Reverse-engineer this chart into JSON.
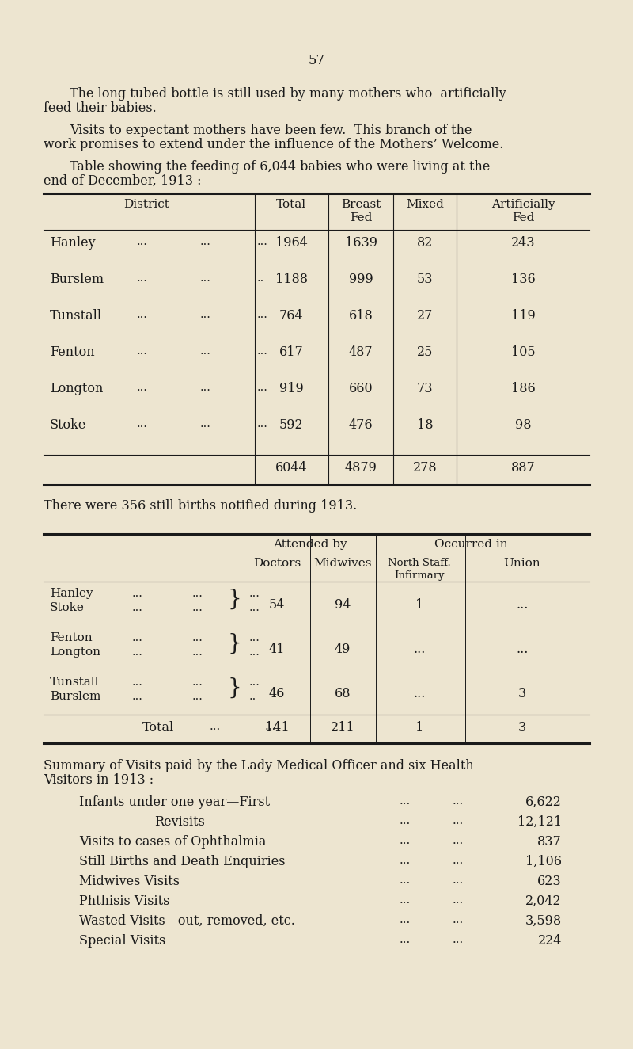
{
  "bg_color": "#ede5d0",
  "text_color": "#1a1a1a",
  "page_number": "57",
  "para1": "The long tubed bottle is still used by many mothers who  artificially\nfeed their babies.",
  "para2": "Visits to expectant mothers have been few.  This branch of the\nwork promises to extend under the influence of the Mothers’ Welcome.",
  "para3": "Table showing the feeding of 6,044 babies who were living at the\nend of December, 1913 :—",
  "names": [
    "Hanley",
    "Burslem",
    "Tunstall",
    "Fenton",
    "Longton",
    "Stoke"
  ],
  "totals_data": [
    "1964",
    "1188",
    "764",
    "617",
    "919",
    "592"
  ],
  "breast_data": [
    "1639",
    "999",
    "618",
    "487",
    "660",
    "476"
  ],
  "mixed_data": [
    "82",
    "53",
    "27",
    "25",
    "73",
    "18"
  ],
  "art_data": [
    "243",
    "136",
    "119",
    "105",
    "186",
    "98"
  ],
  "still_births_text": "There were 356 still births notified during 1913.",
  "t2_row_data": [
    [
      [
        "Hanley",
        "Stoke"
      ],
      "54",
      "94",
      "1",
      "..."
    ],
    [
      [
        "Fenton",
        "Longton"
      ],
      "41",
      "49",
      "...",
      "..."
    ],
    [
      [
        "Tunstall",
        "Burslem"
      ],
      "46",
      "68",
      "...",
      "3"
    ]
  ],
  "summary_title": "Summary of Visits paid by the Lady Medical Officer and six Health\nVisitors in 1913 :—",
  "summary_items": [
    [
      "Infants under one year—First",
      false,
      "6,622"
    ],
    [
      "Revisits",
      true,
      "12,121"
    ],
    [
      "Visits to cases of Ophthalmia",
      false,
      "837"
    ],
    [
      "Still Births and Death Enquiries",
      false,
      "1,106"
    ],
    [
      "Midwives Visits",
      false,
      "623"
    ],
    [
      "Phthisis Visits",
      false,
      "2,042"
    ],
    [
      "Wasted Visits—out, removed, etc.",
      false,
      "3,598"
    ],
    [
      "Special Visits",
      false,
      "224"
    ]
  ]
}
